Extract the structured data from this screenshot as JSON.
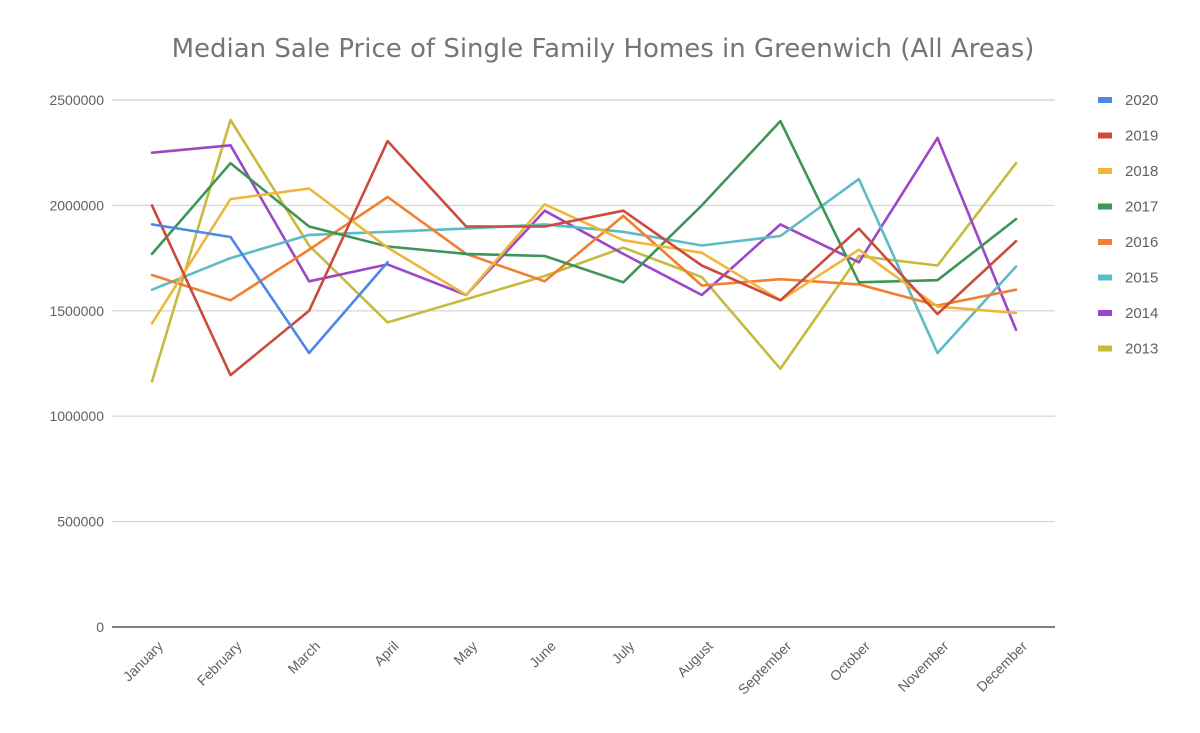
{
  "chart_data": {
    "type": "line",
    "title": "Median Sale Price of Single Family Homes in Greenwich (All Areas)",
    "xlabel": "",
    "ylabel": "",
    "categories": [
      "January",
      "February",
      "March",
      "April",
      "May",
      "June",
      "July",
      "August",
      "September",
      "October",
      "November",
      "December"
    ],
    "ylim": [
      0,
      2500000
    ],
    "y_ticks": [
      "0",
      "500000",
      "1000000",
      "1500000",
      "2000000",
      "2500000"
    ],
    "grid": true,
    "legend_position": "right",
    "series": [
      {
        "name": "2020",
        "color": "#4f86e8",
        "values": [
          1910000,
          1850000,
          1300000,
          1730000,
          null,
          null,
          null,
          null,
          null,
          null,
          null,
          null
        ]
      },
      {
        "name": "2019",
        "color": "#cb4b3c",
        "values": [
          2000000,
          1195000,
          1500000,
          2305000,
          1900000,
          1900000,
          1975000,
          1715000,
          1550000,
          1890000,
          1485000,
          1830000
        ]
      },
      {
        "name": "2018",
        "color": "#f0b63a",
        "values": [
          1440000,
          2030000,
          2080000,
          1800000,
          1575000,
          2005000,
          1835000,
          1775000,
          1550000,
          1790000,
          1520000,
          1490000
        ]
      },
      {
        "name": "2017",
        "color": "#3d9558",
        "values": [
          1770000,
          2200000,
          1900000,
          1805000,
          1770000,
          1760000,
          1635000,
          2000000,
          2400000,
          1635000,
          1645000,
          1935000
        ]
      },
      {
        "name": "2016",
        "color": "#f07f30",
        "values": [
          1670000,
          1550000,
          1790000,
          2040000,
          1770000,
          1640000,
          1950000,
          1620000,
          1650000,
          1625000,
          1525000,
          1600000
        ]
      },
      {
        "name": "2015",
        "color": "#5bbcc6",
        "values": [
          1600000,
          1750000,
          1860000,
          1875000,
          1890000,
          1910000,
          1875000,
          1810000,
          1855000,
          2125000,
          1300000,
          1710000
        ]
      },
      {
        "name": "2014",
        "color": "#9c46c8",
        "values": [
          2250000,
          2285000,
          1640000,
          1720000,
          1575000,
          1975000,
          1770000,
          1575000,
          1910000,
          1730000,
          2320000,
          1410000
        ]
      },
      {
        "name": "2013",
        "color": "#c6bb3c",
        "values": [
          1165000,
          2405000,
          1810000,
          1445000,
          1555000,
          1665000,
          1800000,
          1660000,
          1225000,
          1760000,
          1715000,
          2200000
        ]
      }
    ]
  }
}
